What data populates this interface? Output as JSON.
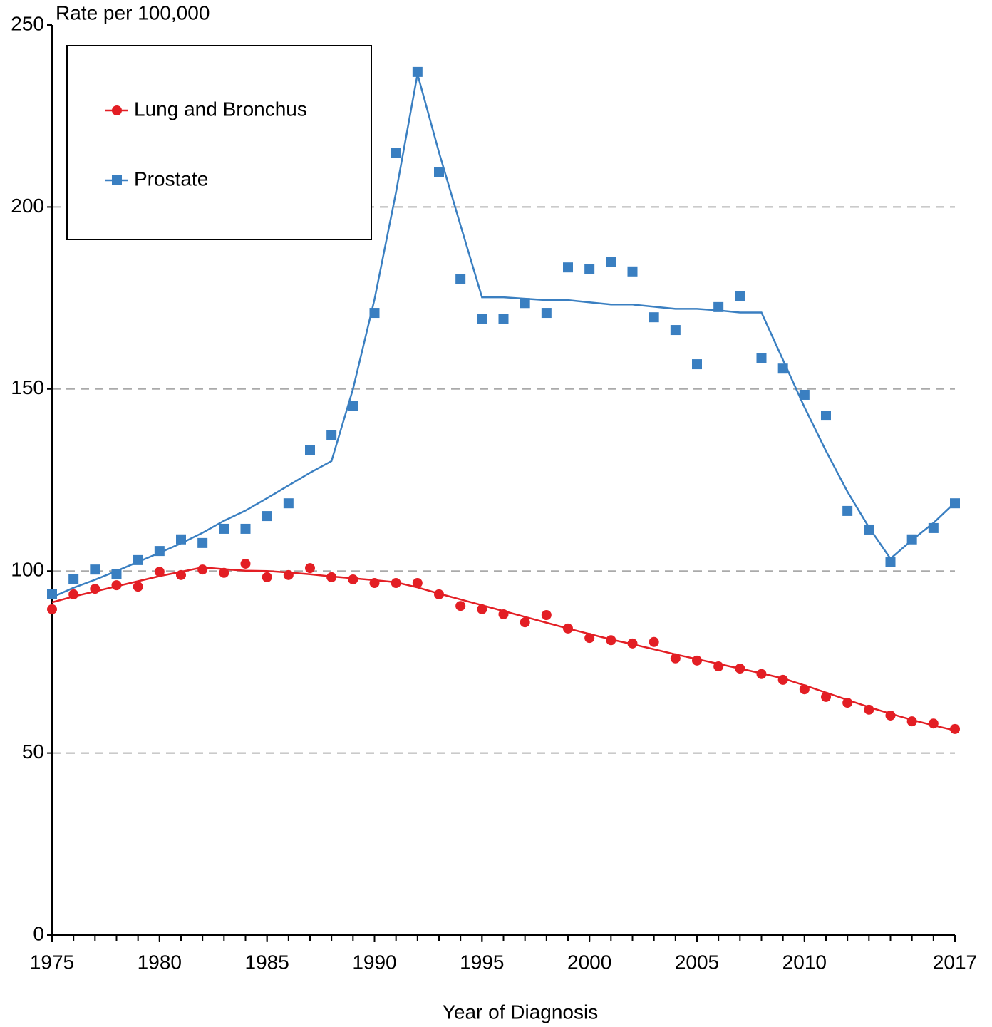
{
  "chart_data": {
    "type": "line",
    "y_label": "Rate per 100,000",
    "x_label": "Year of Diagnosis",
    "x": [
      1975,
      1976,
      1977,
      1978,
      1979,
      1980,
      1981,
      1982,
      1983,
      1984,
      1985,
      1986,
      1987,
      1988,
      1989,
      1990,
      1991,
      1992,
      1993,
      1994,
      1995,
      1996,
      1997,
      1998,
      1999,
      2000,
      2001,
      2002,
      2003,
      2004,
      2005,
      2006,
      2007,
      2008,
      2009,
      2010,
      2011,
      2012,
      2013,
      2014,
      2015,
      2016,
      2017
    ],
    "xlim": [
      1975,
      2017
    ],
    "xticks": [
      1975,
      1980,
      1985,
      1990,
      1995,
      2000,
      2005,
      2010,
      2017
    ],
    "ylim": [
      0,
      250
    ],
    "yticks": [
      0,
      50,
      100,
      150,
      200,
      250
    ],
    "grid": true,
    "legend": "upper left",
    "series": [
      {
        "name": "Lung and Bronchus",
        "color": "#e31e24",
        "marker": "circle",
        "values": [
          89.5,
          93.6,
          95.1,
          96.1,
          95.7,
          99.8,
          98.9,
          100.4,
          99.5,
          102.0,
          98.3,
          98.9,
          100.8,
          98.3,
          97.7,
          96.7,
          96.7,
          96.7,
          93.6,
          90.4,
          89.5,
          88.1,
          85.9,
          87.9,
          84.2,
          81.6,
          81.0,
          80.1,
          80.5,
          76.0,
          75.4,
          73.8,
          73.2,
          71.7,
          70.1,
          67.5,
          65.4,
          63.8,
          61.9,
          60.3,
          58.7,
          58.1,
          56.6
        ],
        "trend": [
          91.4,
          93.0,
          94.4,
          95.8,
          97.2,
          98.6,
          99.8,
          101.0,
          100.5,
          100.1,
          100.0,
          99.6,
          99.1,
          98.5,
          98.0,
          97.5,
          96.9,
          95.5,
          93.8,
          92.2,
          90.6,
          89.0,
          87.4,
          85.8,
          84.2,
          82.7,
          81.2,
          79.9,
          78.5,
          77.1,
          75.8,
          74.5,
          73.2,
          71.9,
          70.5,
          68.6,
          66.6,
          64.6,
          62.6,
          60.8,
          59.1,
          57.6,
          56.2
        ]
      },
      {
        "name": "Prostate",
        "color": "#3a7fc1",
        "marker": "square",
        "values": [
          93.6,
          97.7,
          100.4,
          99.1,
          103.0,
          105.5,
          108.7,
          107.7,
          111.6,
          111.6,
          115.1,
          118.6,
          133.3,
          137.4,
          145.3,
          170.9,
          214.8,
          237.1,
          209.5,
          180.3,
          169.3,
          169.3,
          173.6,
          170.9,
          183.4,
          182.9,
          185.0,
          182.3,
          169.7,
          166.2,
          156.8,
          172.5,
          175.6,
          158.4,
          155.6,
          148.4,
          142.7,
          116.5,
          111.4,
          102.4,
          108.7,
          111.8,
          118.6
        ],
        "trend": [
          92.8,
          95.4,
          97.6,
          100.0,
          102.5,
          105.0,
          107.6,
          110.5,
          113.8,
          116.6,
          120.0,
          123.5,
          127.0,
          130.2,
          150.0,
          174.6,
          204.0,
          236.5,
          215.0,
          195.0,
          175.2,
          175.2,
          174.8,
          174.4,
          174.4,
          173.8,
          173.2,
          173.2,
          172.6,
          172.0,
          172.0,
          171.6,
          171.0,
          171.0,
          158.0,
          145.0,
          133.0,
          121.8,
          112.0,
          103.4,
          108.5,
          113.2,
          118.8
        ]
      }
    ]
  }
}
